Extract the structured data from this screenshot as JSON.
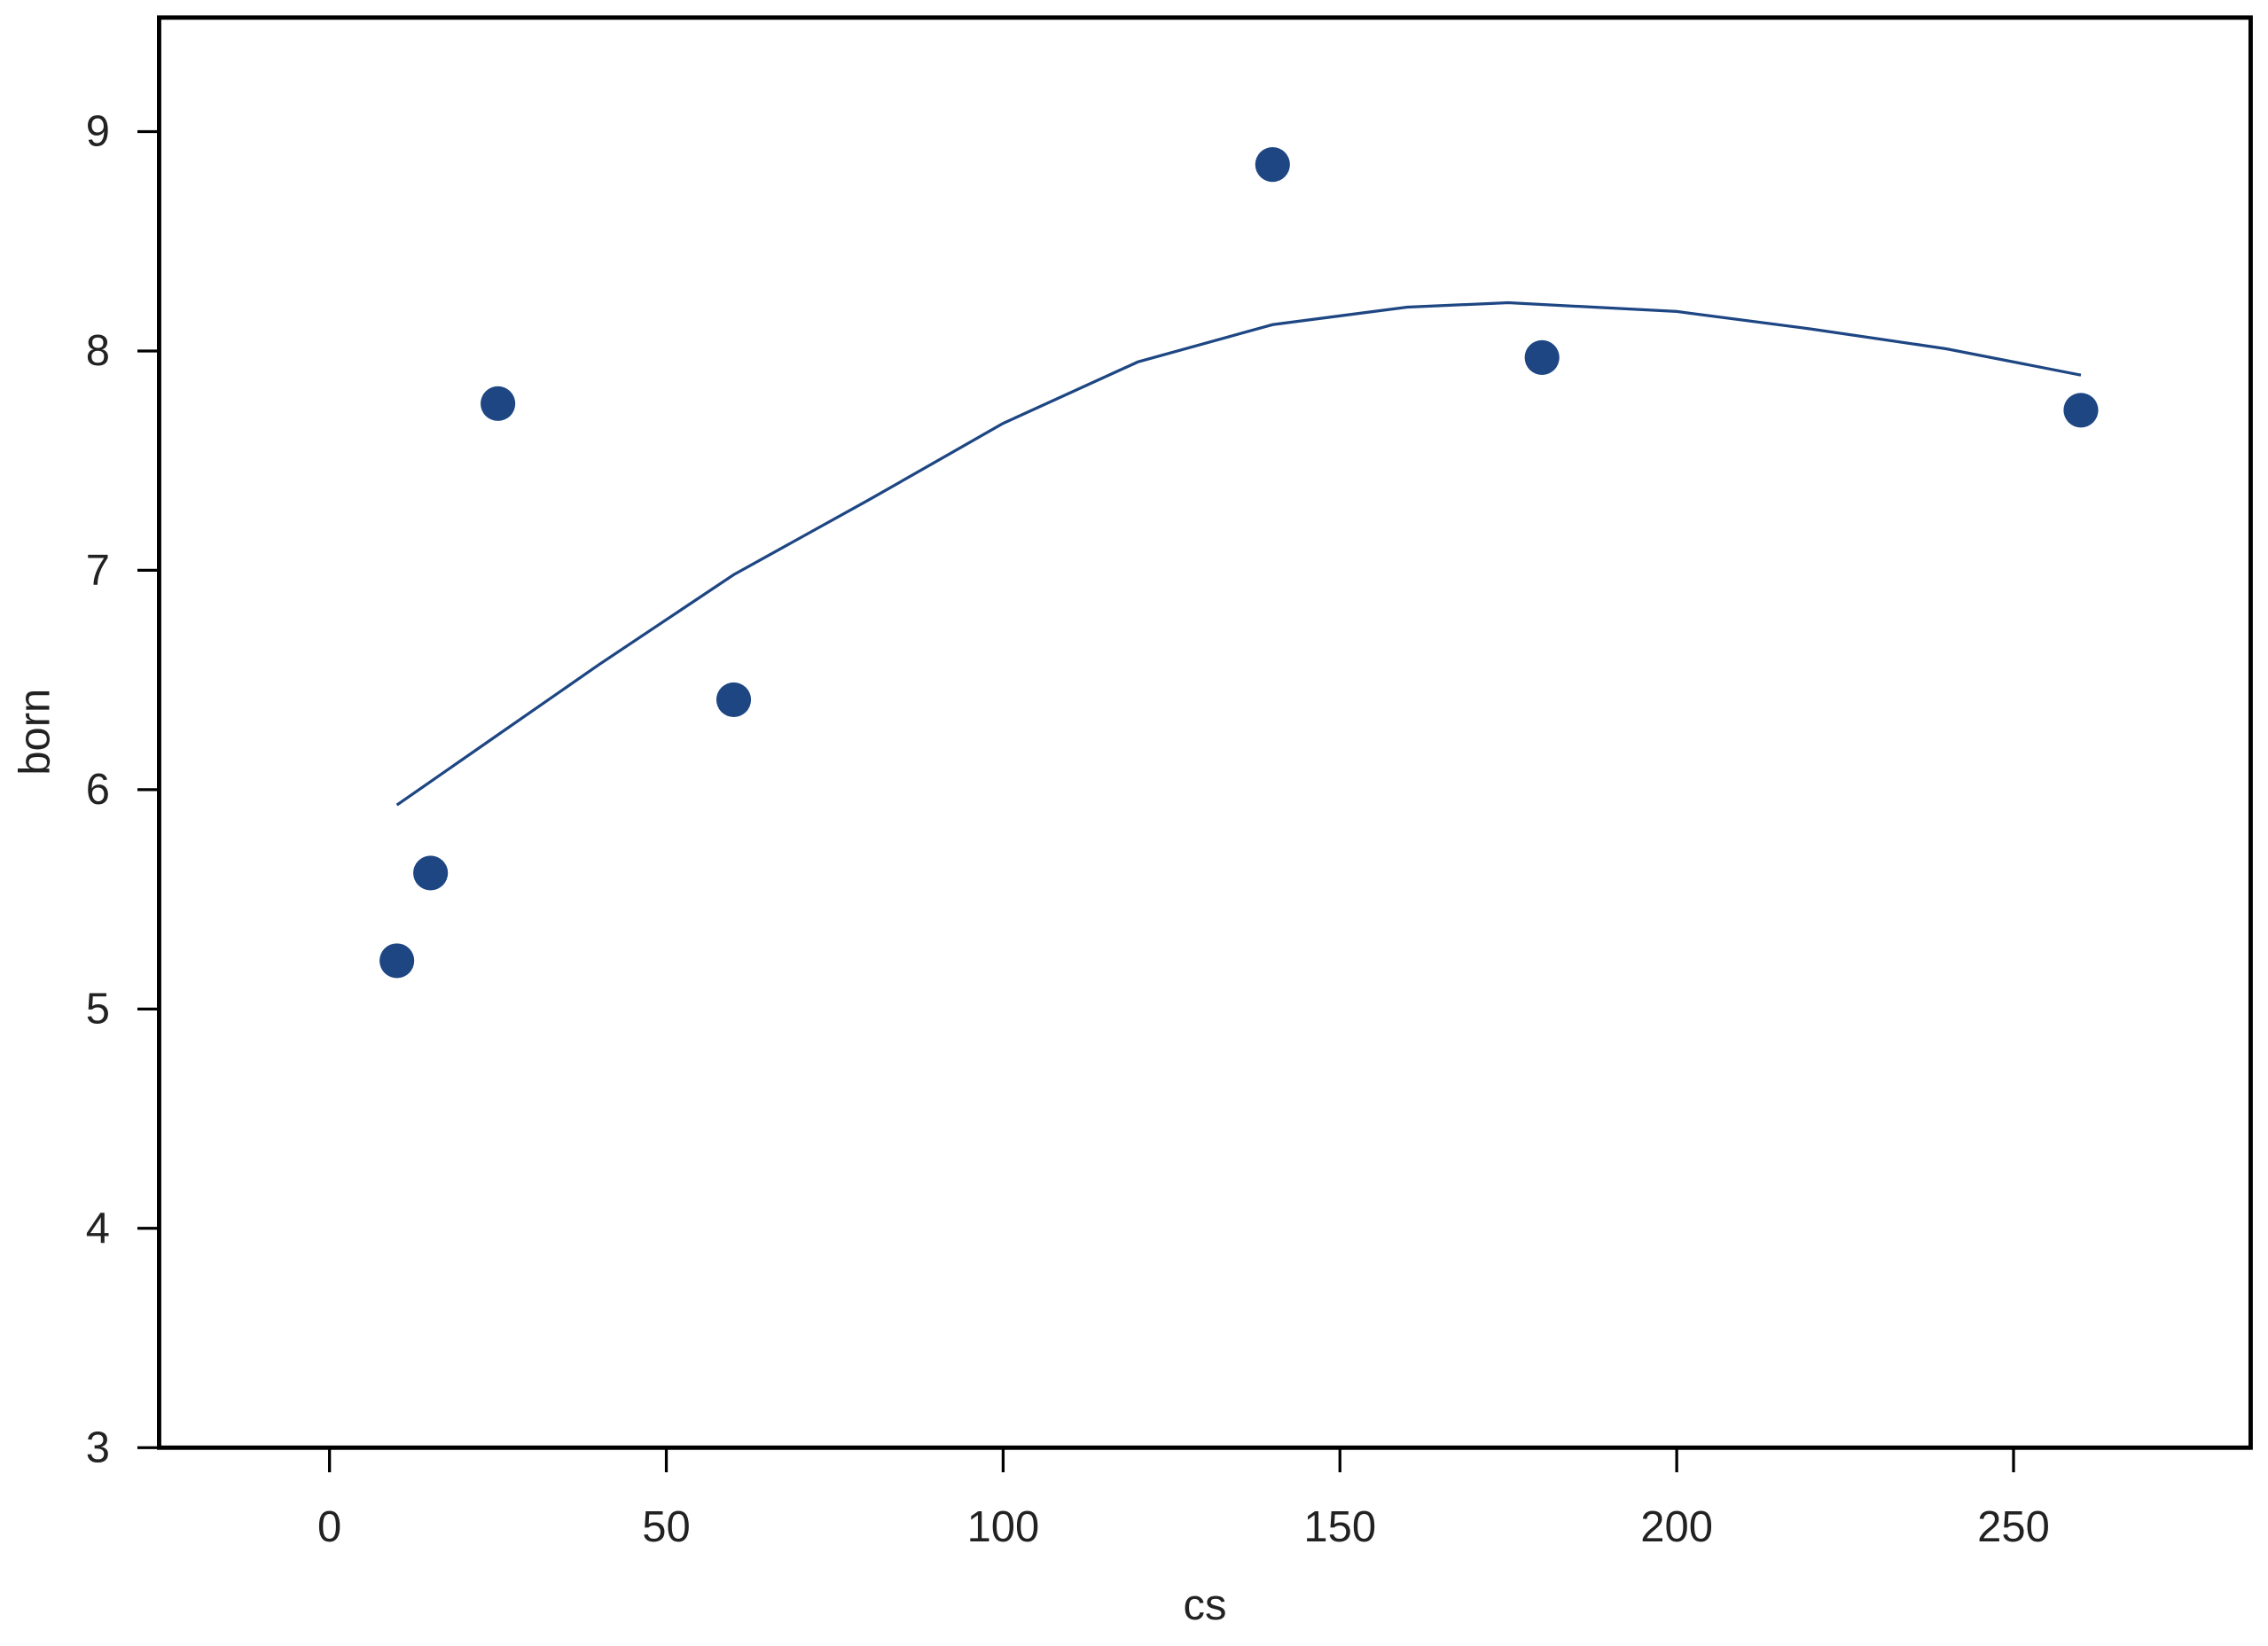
{
  "chart_data": {
    "type": "scatter",
    "xlabel": "cs",
    "ylabel": "born",
    "xlim": [
      -25.3,
      285.2
    ],
    "ylim": [
      3,
      9.52
    ],
    "xticks": [
      0,
      50,
      100,
      150,
      200,
      250
    ],
    "yticks": [
      3,
      4,
      5,
      6,
      7,
      8,
      9
    ],
    "series": [
      {
        "mode": "markers",
        "color": "#1d4683",
        "x": [
          10,
          15,
          25,
          60,
          140,
          180,
          260
        ],
        "values": [
          5.22,
          5.62,
          7.76,
          6.41,
          8.85,
          7.97,
          7.73
        ]
      },
      {
        "mode": "line",
        "color": "#1d4683",
        "x": [
          10,
          25,
          40,
          60,
          80,
          100,
          120,
          140,
          160,
          175,
          200,
          220,
          240,
          260
        ],
        "values": [
          5.93,
          6.25,
          6.57,
          6.98,
          7.32,
          7.67,
          7.95,
          8.12,
          8.2,
          8.22,
          8.18,
          8.1,
          8.01,
          7.89
        ]
      }
    ]
  }
}
